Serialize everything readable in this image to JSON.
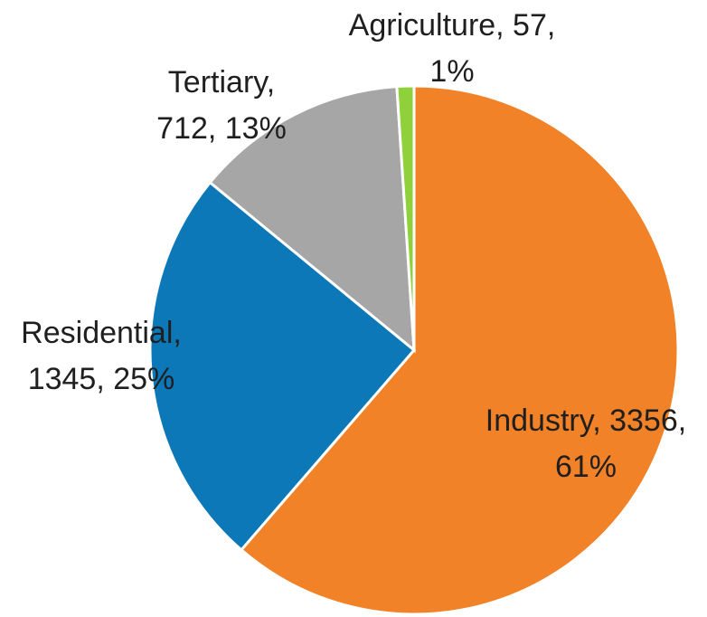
{
  "chart_data": {
    "type": "pie",
    "categories": [
      "Industry",
      "Residential",
      "Tertiary",
      "Agriculture"
    ],
    "values": [
      3356,
      1345,
      712,
      57
    ],
    "value_labels": [
      [
        "Industry, 3356,",
        "61%"
      ],
      [
        "Residential,",
        "1345, 25%"
      ],
      [
        "Tertiary,",
        "712, 13%"
      ],
      [
        "Agriculture, 57,",
        "1%"
      ]
    ],
    "colors": [
      "#f28228",
      "#0c78b8",
      "#a6a6a6",
      "#8ed13b"
    ]
  }
}
